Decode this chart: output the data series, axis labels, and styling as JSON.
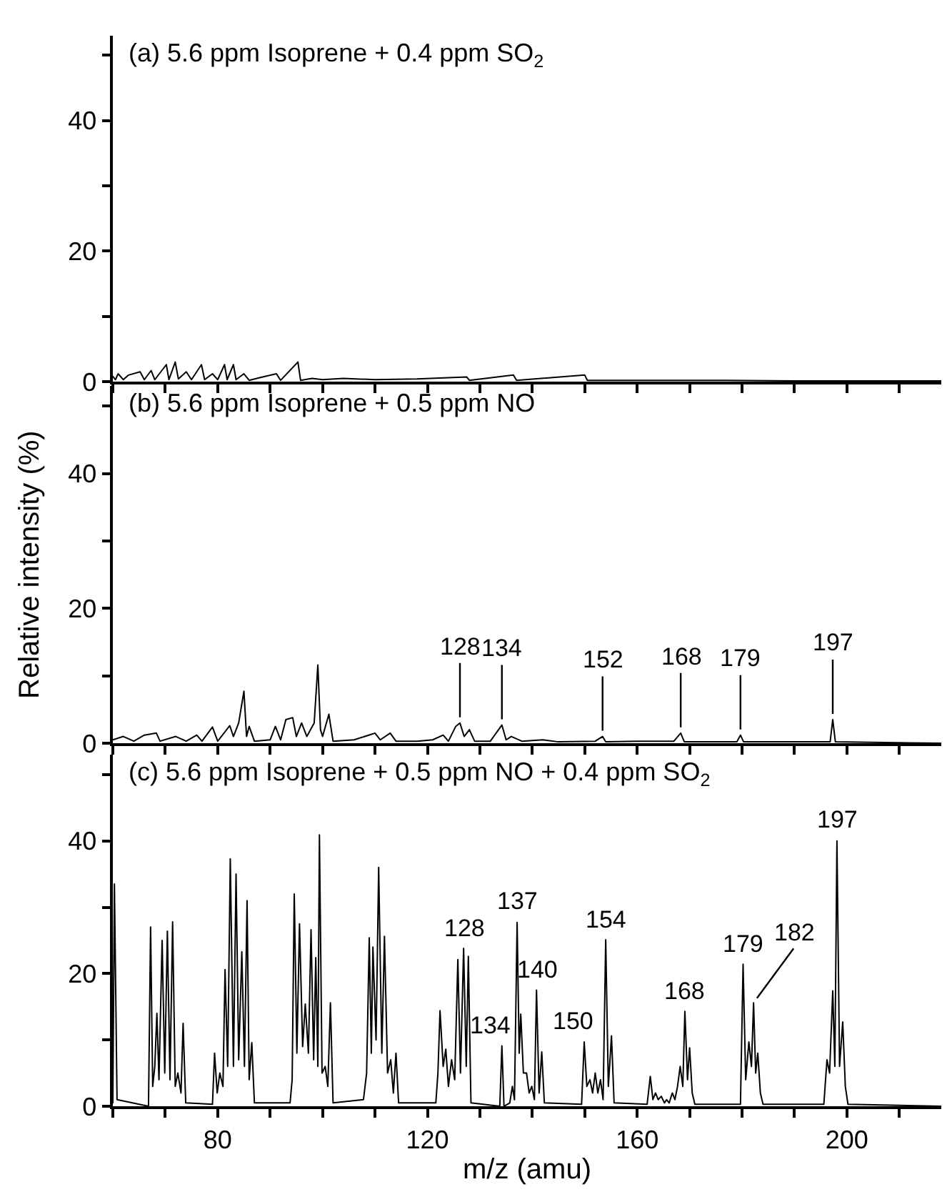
{
  "chart_data": [
    {
      "type": "line",
      "title": "(a) 5.6 ppm Isoprene + 0.4 ppm SO$_{2}$",
      "xlim": [
        60,
        218
      ],
      "ylim": [
        0,
        53
      ],
      "xticks": [
        {
          "value": 60,
          "label": null
        },
        {
          "value": 70,
          "label": null
        },
        {
          "value": 80,
          "label": null
        },
        {
          "value": 90,
          "label": null
        },
        {
          "value": 100,
          "label": null
        },
        {
          "value": 110,
          "label": null
        },
        {
          "value": 120,
          "label": null
        },
        {
          "value": 130,
          "label": null
        },
        {
          "value": 140,
          "label": null
        },
        {
          "value": 150,
          "label": null
        },
        {
          "value": 160,
          "label": null
        },
        {
          "value": 170,
          "label": null
        },
        {
          "value": 180,
          "label": null
        },
        {
          "value": 190,
          "label": null
        },
        {
          "value": 200,
          "label": null
        },
        {
          "value": 210,
          "label": null
        }
      ],
      "yticks": [
        0,
        {
          "value": 10,
          "label": null
        },
        20,
        {
          "value": 30,
          "label": null
        },
        40,
        {
          "value": 50,
          "label": null
        }
      ],
      "tick_labels": "y",
      "series": [
        {
          "color": "#000000",
          "x": [
            60,
            60.5,
            61,
            62,
            63,
            65.2,
            66,
            67.3,
            68,
            70.2,
            70.7,
            71.9,
            72.5,
            74,
            75,
            76.9,
            77.5,
            79,
            80,
            81.3,
            81.8,
            83,
            83.5,
            85,
            86,
            88,
            91.2,
            92,
            95.3,
            95.8,
            98,
            100,
            104,
            110,
            118,
            127.5,
            128,
            136.4,
            137,
            150,
            150.5,
            160,
            175,
            190,
            218
          ],
          "values": [
            0.8,
            0.3,
            1.2,
            0.3,
            1,
            1.5,
            0.3,
            1.7,
            0.3,
            2.6,
            0.3,
            3.0,
            0.4,
            1.5,
            0.3,
            2.6,
            0.3,
            1.2,
            0.3,
            2.6,
            0.3,
            2.6,
            0.3,
            1.2,
            0.2,
            0.6,
            1.2,
            0.2,
            3.0,
            0.2,
            0.5,
            0.3,
            0.5,
            0.3,
            0.4,
            0.7,
            0.2,
            1.0,
            0.2,
            1.0,
            0.2,
            0.2,
            0.2,
            0.1,
            0.1
          ]
        }
      ]
    },
    {
      "type": "line",
      "title": "(b) 5.6 ppm Isoprene + 0.5 ppm NO",
      "ylabel": "Relative intensity (%)",
      "xlim": [
        60,
        218
      ],
      "ylim": [
        0,
        53
      ],
      "xticks": [
        {
          "value": 60,
          "label": null
        },
        {
          "value": 70,
          "label": null
        },
        {
          "value": 80,
          "label": null
        },
        {
          "value": 90,
          "label": null
        },
        {
          "value": 100,
          "label": null
        },
        {
          "value": 110,
          "label": null
        },
        {
          "value": 120,
          "label": null
        },
        {
          "value": 130,
          "label": null
        },
        {
          "value": 140,
          "label": null
        },
        {
          "value": 150,
          "label": null
        },
        {
          "value": 160,
          "label": null
        },
        {
          "value": 170,
          "label": null
        },
        {
          "value": 180,
          "label": null
        },
        {
          "value": 190,
          "label": null
        },
        {
          "value": 200,
          "label": null
        },
        {
          "value": 210,
          "label": null
        }
      ],
      "yticks": [
        0,
        {
          "value": 10,
          "label": null
        },
        20,
        {
          "value": 30,
          "label": null
        },
        40,
        {
          "value": 50,
          "label": null
        }
      ],
      "tick_labels": "y",
      "series": [
        {
          "color": "#000000",
          "x": [
            60,
            62,
            64,
            66,
            68.3,
            69,
            72,
            74,
            76,
            77,
            79,
            80,
            82.3,
            83,
            84,
            85,
            85.5,
            86,
            87,
            90,
            91,
            92,
            93,
            94.3,
            95,
            96,
            97,
            98.4,
            99.1,
            99.6,
            100,
            101.2,
            102,
            106,
            108.8,
            110,
            111,
            112.9,
            114,
            118,
            121,
            123,
            124,
            125.4,
            126.2,
            127,
            128,
            129,
            132,
            134.2,
            135,
            136,
            138,
            142,
            145,
            152,
            153.4,
            154,
            160,
            167,
            168.3,
            169,
            179,
            179.7,
            180.3,
            190,
            196.8,
            197.3,
            197.8,
            218
          ],
          "values": [
            0.5,
            1,
            0.3,
            1.2,
            1.5,
            0.3,
            1,
            0.3,
            1.2,
            0.3,
            2.4,
            0.3,
            2.6,
            1,
            3,
            7.7,
            1,
            2.5,
            0.3,
            0.5,
            2.5,
            0.5,
            3.5,
            3.8,
            1,
            3,
            1,
            3,
            11.6,
            2,
            1,
            4.3,
            0.3,
            0.5,
            1.2,
            1.5,
            0.5,
            1.5,
            0.3,
            0.3,
            0.5,
            1.2,
            0.3,
            2.5,
            3,
            1,
            2,
            0.3,
            0.3,
            2.7,
            0.5,
            1,
            0.3,
            0.5,
            0.2,
            0.3,
            1,
            0.2,
            0.3,
            0.3,
            1.5,
            0.2,
            0.2,
            1.2,
            0.2,
            0.2,
            0.2,
            3.5,
            0.2,
            0
          ]
        }
      ],
      "annotations": [
        {
          "text": "128",
          "x": 126.2,
          "y": 3
        },
        {
          "text": "134",
          "x": 134.2,
          "y": 2.7
        },
        {
          "text": "152",
          "x": 153.4,
          "y": 1
        },
        {
          "text": "168",
          "x": 168.3,
          "y": 1.5
        },
        {
          "text": "179",
          "x": 179.7,
          "y": 1.2
        },
        {
          "text": "197",
          "x": 197.3,
          "y": 3.5
        }
      ]
    },
    {
      "type": "line",
      "title": "(c) 5.6 ppm Isoprene + 0.5 ppm NO + 0.4 ppm SO$_{2}$",
      "xlabel": "m/z (amu)",
      "xlim": [
        60,
        218
      ],
      "ylim": [
        0,
        53
      ],
      "xticks": [
        {
          "value": 60,
          "label": null
        },
        {
          "value": 70,
          "label": null
        },
        80,
        {
          "value": 90,
          "label": null
        },
        {
          "value": 100,
          "label": null
        },
        {
          "value": 110,
          "label": null
        },
        120,
        {
          "value": 130,
          "label": null
        },
        {
          "value": 140,
          "label": null
        },
        {
          "value": 150,
          "label": null
        },
        160,
        {
          "value": 170,
          "label": null
        },
        {
          "value": 180,
          "label": null
        },
        {
          "value": 190,
          "label": null
        },
        200,
        {
          "value": 210,
          "label": null
        }
      ],
      "yticks": [
        0,
        {
          "value": 10,
          "label": null
        },
        20,
        {
          "value": 30,
          "label": null
        },
        40,
        {
          "value": 50,
          "label": null
        }
      ],
      "series": [
        {
          "color": "#000000",
          "x": [
            60,
            60.3,
            60.8,
            66.8,
            67.2,
            67.6,
            68.0,
            68.4,
            68.8,
            69.4,
            69.9,
            70.4,
            70.9,
            71.4,
            71.9,
            72.4,
            73.0,
            73.4,
            73.9,
            79.0,
            79.4,
            79.9,
            80.4,
            81.0,
            81.4,
            81.9,
            82.4,
            83.0,
            83.5,
            84.0,
            84.6,
            85.1,
            85.6,
            86.0,
            86.5,
            87.0,
            93.8,
            94.2,
            94.6,
            95.1,
            95.6,
            96.2,
            96.7,
            97.3,
            97.8,
            98.3,
            98.7,
            99.1,
            99.4,
            99.9,
            100.5,
            101.0,
            101.5,
            102.0,
            107.8,
            108.4,
            108.9,
            109.3,
            109.6,
            110.2,
            110.7,
            111.3,
            111.8,
            112.4,
            113.0,
            113.5,
            114.0,
            114.5,
            121.6,
            122.0,
            122.4,
            123.0,
            123.5,
            124.0,
            124.6,
            125.2,
            125.8,
            126.3,
            126.9,
            127.4,
            127.8,
            128.3,
            133.8,
            134.2,
            134.6,
            135.7,
            136.2,
            136.6,
            137.1,
            137.5,
            137.8,
            138.3,
            138.9,
            139.4,
            139.9,
            140.4,
            140.8,
            141.3,
            141.8,
            142.3,
            149.4,
            149.9,
            150.4,
            151.0,
            151.5,
            152.0,
            152.5,
            153.0,
            153.5,
            154.0,
            154.5,
            155.1,
            155.6,
            161.9,
            162.5,
            163.0,
            163.5,
            164.0,
            164.6,
            165.2,
            165.6,
            166.1,
            166.7,
            167.2,
            167.7,
            168.2,
            168.7,
            169.1,
            169.6,
            170.0,
            170.5,
            171.0,
            179.7,
            180.2,
            180.7,
            181.3,
            181.8,
            182.2,
            182.6,
            183.0,
            183.5,
            184.0,
            195.6,
            196.2,
            196.7,
            197.3,
            197.7,
            198.1,
            198.6,
            199.2,
            199.7,
            200.2,
            218
          ],
          "values": [
            0.5,
            33.5,
            1,
            0,
            27,
            3,
            6,
            14,
            4,
            25,
            5,
            26.4,
            4,
            27.8,
            3,
            5,
            2,
            12.5,
            0.5,
            0.3,
            8,
            2,
            5,
            3,
            20.6,
            6,
            37.3,
            6,
            35,
            7,
            23.3,
            6,
            31,
            4,
            9.6,
            0.5,
            0.5,
            4,
            32,
            8,
            27.5,
            9,
            15.4,
            8,
            26.6,
            7,
            22.4,
            6,
            40.9,
            5,
            6,
            3,
            15.6,
            0.5,
            1,
            5,
            25.4,
            8,
            24,
            10,
            36,
            8,
            25.6,
            5,
            7,
            2,
            8,
            0.5,
            0.5,
            5,
            14.4,
            6,
            8.6,
            3,
            7,
            4,
            22.1,
            5,
            23.8,
            6,
            22.6,
            0.5,
            0,
            9.1,
            0,
            0.5,
            3,
            1,
            27.7,
            8,
            13.9,
            5,
            5,
            2,
            3,
            1,
            17.5,
            2,
            8.2,
            0.5,
            0.3,
            9.7,
            3,
            4,
            2,
            5,
            2,
            4,
            1,
            25.1,
            3,
            10.6,
            0.5,
            0.3,
            4.5,
            1,
            2,
            1,
            1.5,
            0.5,
            1,
            0.5,
            2,
            1,
            3,
            6,
            3,
            14.3,
            4,
            8.8,
            2,
            0.3,
            0.3,
            21.4,
            4,
            9.7,
            6,
            15.6,
            5,
            8,
            2,
            0.3,
            0.3,
            7,
            5,
            17.4,
            6,
            40,
            6,
            12.7,
            3,
            0.3,
            0
          ]
        }
      ],
      "annotations": [
        {
          "text": "128",
          "x": 126.9,
          "y": 23.8
        },
        {
          "text": "134",
          "x": 134.2,
          "y": 9.1
        },
        {
          "text": "137",
          "x": 137.1,
          "y": 27.7
        },
        {
          "text": "140",
          "x": 140.8,
          "y": 17.5
        },
        {
          "text": "150",
          "x": 149.9,
          "y": 9.7
        },
        {
          "text": "154",
          "x": 154.0,
          "y": 25.1
        },
        {
          "text": "168",
          "x": 169.1,
          "y": 14.3
        },
        {
          "text": "179",
          "x": 180.2,
          "y": 21.4
        },
        {
          "text": "182",
          "x": 182.2,
          "y": 15.6
        },
        {
          "text": "197",
          "x": 198.1,
          "y": 40
        }
      ]
    }
  ]
}
